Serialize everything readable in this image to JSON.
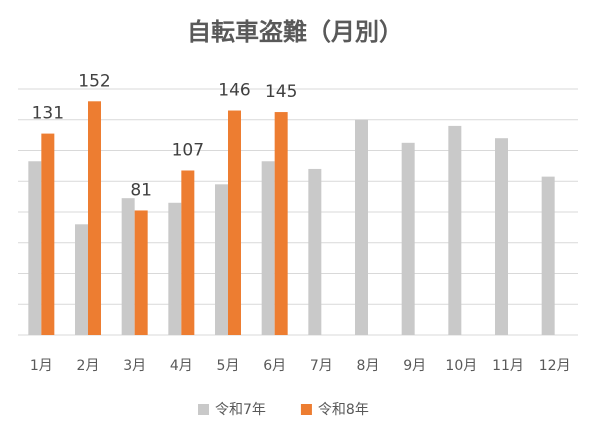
{
  "chart_data": {
    "type": "bar",
    "title": "自転車盗難（月別）",
    "categories": [
      "1月",
      "2月",
      "3月",
      "4月",
      "5月",
      "6月",
      "7月",
      "8月",
      "9月",
      "10月",
      "11月",
      "12月"
    ],
    "series": [
      {
        "name": "令和7年",
        "color": "#c9c9c9",
        "values": [
          113,
          72,
          89,
          86,
          98,
          113,
          108,
          140,
          125,
          136,
          128,
          103
        ]
      },
      {
        "name": "令和8年",
        "color": "#ed7d31",
        "values": [
          131,
          152,
          81,
          107,
          146,
          145,
          null,
          null,
          null,
          null,
          null,
          null
        ]
      }
    ],
    "data_labels_series": 1,
    "ylim": [
      0,
      160
    ],
    "yticks": [
      0,
      20,
      40,
      60,
      80,
      100,
      120,
      140,
      160
    ],
    "grid": true
  }
}
